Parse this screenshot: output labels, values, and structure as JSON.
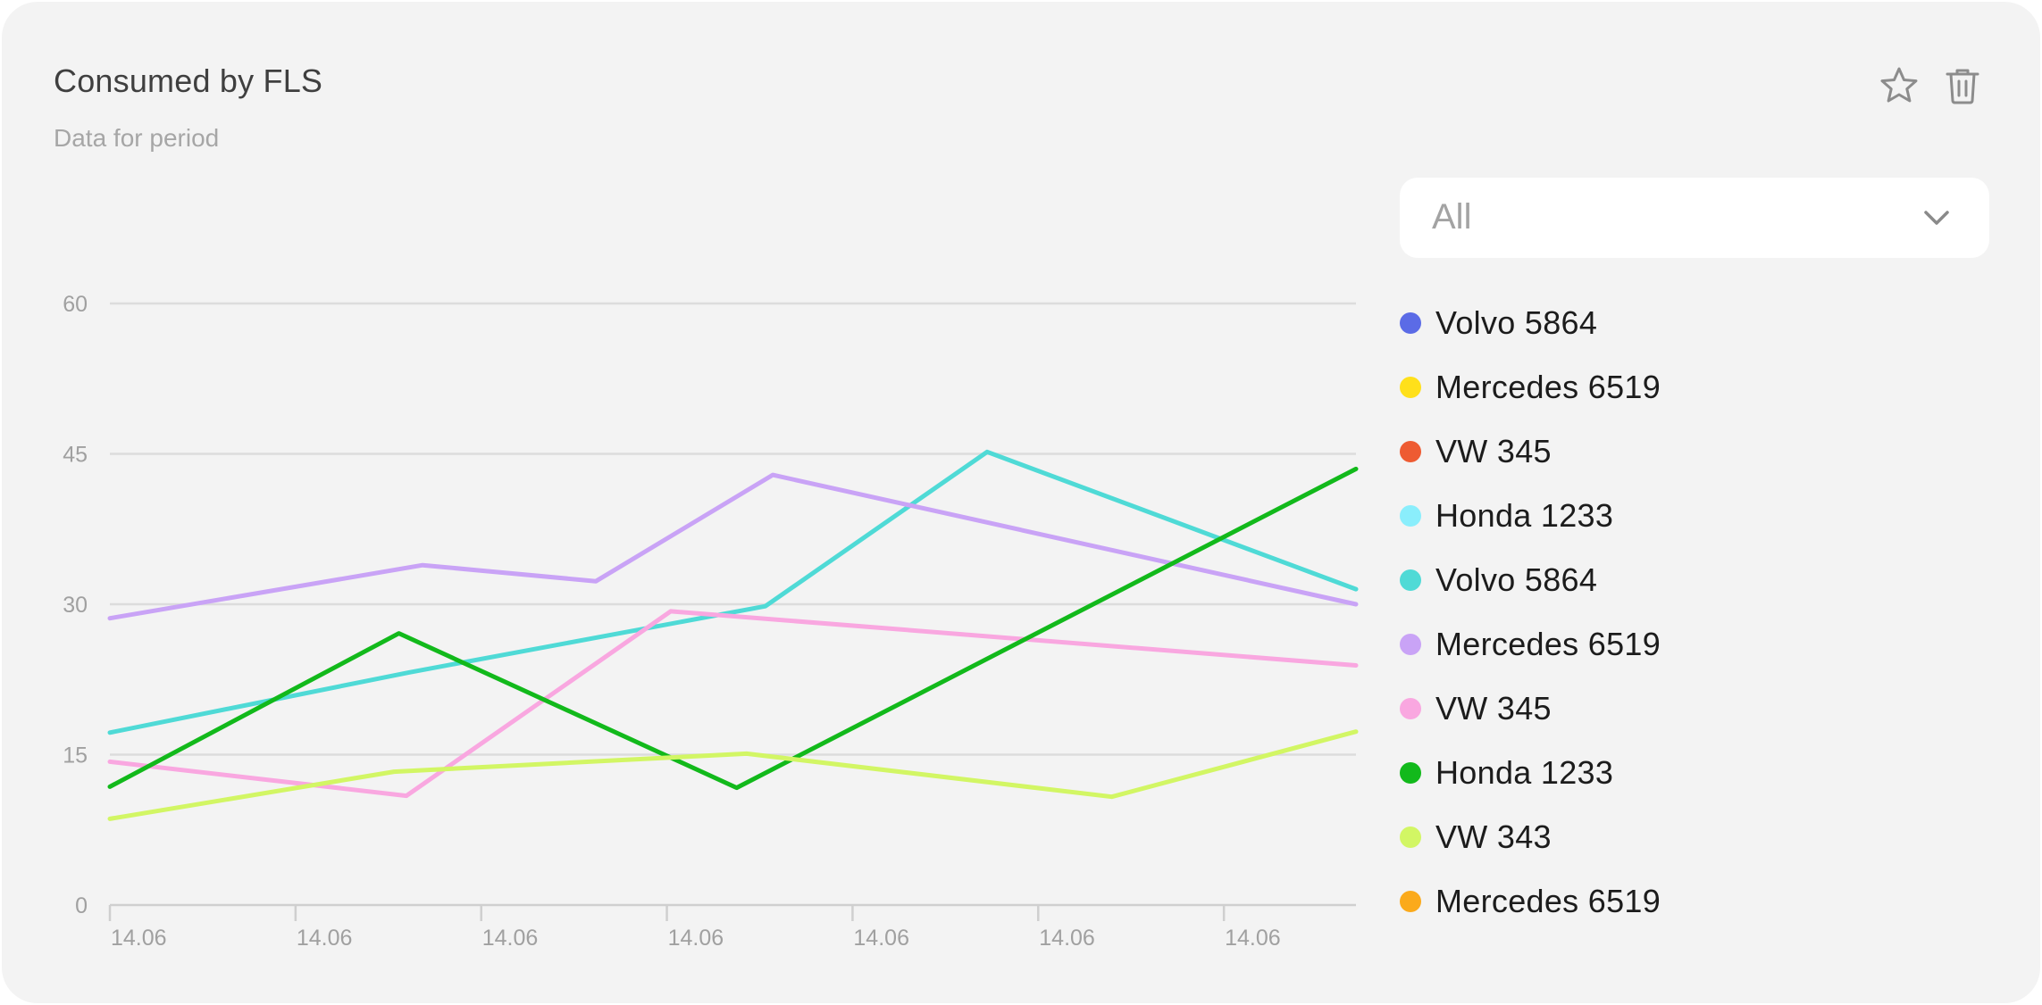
{
  "card": {
    "title": "Consumed by FLS",
    "subtitle": "Data for period",
    "actions": [
      {
        "name": "favorite",
        "icon": "star-icon"
      },
      {
        "name": "delete",
        "icon": "trash-icon"
      }
    ]
  },
  "filter": {
    "selected": "All",
    "icon": "chevron-down-icon"
  },
  "chart_data": {
    "type": "line",
    "title": "",
    "xlabel": "",
    "ylabel": "",
    "ylim": [
      0,
      60
    ],
    "yticks": [
      0,
      15,
      30,
      45,
      60
    ],
    "xlim": [
      0,
      1
    ],
    "xticks": [
      0,
      0.149,
      0.298,
      0.447,
      0.596,
      0.745,
      0.894
    ],
    "xtick_labels": [
      "14.06",
      "14.06",
      "14.06",
      "14.06",
      "14.06",
      "14.06",
      "14.06"
    ],
    "grid": true,
    "legend_position": "right",
    "legend": [
      {
        "name": "Volvo 5864",
        "color": "#5b6be6"
      },
      {
        "name": "Mercedes 6519",
        "color": "#ffe01a"
      },
      {
        "name": "VW 345",
        "color": "#ee5b32"
      },
      {
        "name": "Honda 1233",
        "color": "#8aeefc"
      },
      {
        "name": "Volvo 5864",
        "color": "#4fdad6"
      },
      {
        "name": "Mercedes 6519",
        "color": "#c9a3f6"
      },
      {
        "name": "VW 345",
        "color": "#f9a7e0"
      },
      {
        "name": "Honda 1233",
        "color": "#12b91b"
      },
      {
        "name": "VW 343",
        "color": "#d2f664"
      },
      {
        "name": "Mercedes 6519",
        "color": "#fbaa1b"
      }
    ],
    "series": [
      {
        "name": "Volvo 5864",
        "color": "#4fdad6",
        "points": [
          [
            0,
            17.2
          ],
          [
            0.24,
            23.2
          ],
          [
            0.526,
            29.8
          ],
          [
            0.704,
            45.2
          ],
          [
            1,
            31.5
          ]
        ]
      },
      {
        "name": "Mercedes 6519",
        "color": "#c9a3f6",
        "points": [
          [
            0,
            28.6
          ],
          [
            0.251,
            33.9
          ],
          [
            0.39,
            32.3
          ],
          [
            0.532,
            42.9
          ],
          [
            1,
            30.0
          ]
        ]
      },
      {
        "name": "VW 345",
        "color": "#f9a7e0",
        "points": [
          [
            0,
            14.3
          ],
          [
            0.238,
            10.9
          ],
          [
            0.45,
            29.3
          ],
          [
            1,
            23.9
          ]
        ]
      },
      {
        "name": "Honda 1233",
        "color": "#12b91b",
        "points": [
          [
            0,
            11.8
          ],
          [
            0.232,
            27.1
          ],
          [
            0.503,
            11.7
          ],
          [
            1,
            43.5
          ]
        ]
      },
      {
        "name": "VW 343",
        "color": "#d2f664",
        "points": [
          [
            0,
            8.6
          ],
          [
            0.228,
            13.3
          ],
          [
            0.511,
            15.1
          ],
          [
            0.804,
            10.8
          ],
          [
            1,
            17.3
          ]
        ]
      }
    ]
  }
}
